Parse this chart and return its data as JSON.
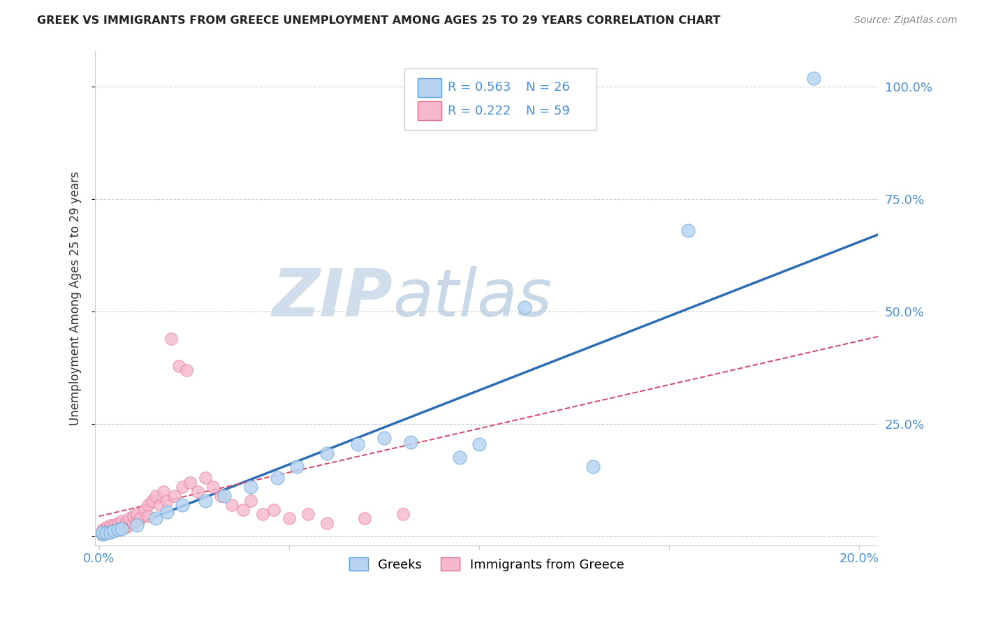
{
  "title": "GREEK VS IMMIGRANTS FROM GREECE UNEMPLOYMENT AMONG AGES 25 TO 29 YEARS CORRELATION CHART",
  "source": "Source: ZipAtlas.com",
  "ylabel": "Unemployment Among Ages 25 to 29 years",
  "xlim": [
    -0.001,
    0.205
  ],
  "ylim": [
    -0.02,
    1.08
  ],
  "xtick_positions": [
    0.0,
    0.05,
    0.1,
    0.15,
    0.2
  ],
  "xticklabels": [
    "0.0%",
    "",
    "",
    "",
    "20.0%"
  ],
  "ytick_positions": [
    0.0,
    0.25,
    0.5,
    0.75,
    1.0
  ],
  "yticklabels": [
    "",
    "25.0%",
    "50.0%",
    "75.0%",
    "100.0%"
  ],
  "blue_R": "R = 0.563",
  "blue_N": "N = 26",
  "pink_R": "R = 0.222",
  "pink_N": "N = 59",
  "blue_fill": "#b8d4f0",
  "pink_fill": "#f5b8cc",
  "blue_edge": "#5a9fd4",
  "pink_edge": "#e07090",
  "blue_line": "#2e6db4",
  "pink_line": "#d45070",
  "tick_color": "#4a90d9",
  "label_1": "Greeks",
  "label_2": "Immigrants from Greece",
  "watermark_zip": "ZIP",
  "watermark_atlas": "atlas",
  "blue_x": [
    0.001,
    0.001,
    0.002,
    0.003,
    0.004,
    0.005,
    0.006,
    0.01,
    0.015,
    0.018,
    0.022,
    0.028,
    0.033,
    0.04,
    0.047,
    0.052,
    0.06,
    0.068,
    0.075,
    0.082,
    0.095,
    0.1,
    0.112,
    0.13,
    0.155,
    0.188
  ],
  "blue_y": [
    0.005,
    0.01,
    0.008,
    0.01,
    0.012,
    0.015,
    0.018,
    0.025,
    0.04,
    0.055,
    0.07,
    0.08,
    0.09,
    0.11,
    0.13,
    0.155,
    0.185,
    0.205,
    0.22,
    0.21,
    0.175,
    0.205,
    0.51,
    0.155,
    0.68,
    1.02
  ],
  "pink_x": [
    0.001,
    0.001,
    0.001,
    0.001,
    0.001,
    0.002,
    0.002,
    0.002,
    0.002,
    0.003,
    0.003,
    0.003,
    0.003,
    0.004,
    0.004,
    0.004,
    0.005,
    0.005,
    0.005,
    0.006,
    0.006,
    0.006,
    0.007,
    0.007,
    0.008,
    0.008,
    0.009,
    0.009,
    0.01,
    0.01,
    0.011,
    0.012,
    0.013,
    0.013,
    0.014,
    0.015,
    0.016,
    0.017,
    0.018,
    0.019,
    0.02,
    0.021,
    0.022,
    0.023,
    0.024,
    0.026,
    0.028,
    0.03,
    0.032,
    0.035,
    0.038,
    0.04,
    0.043,
    0.046,
    0.05,
    0.055,
    0.06,
    0.07,
    0.08
  ],
  "pink_y": [
    0.005,
    0.008,
    0.01,
    0.012,
    0.015,
    0.008,
    0.01,
    0.015,
    0.02,
    0.01,
    0.015,
    0.02,
    0.025,
    0.012,
    0.018,
    0.025,
    0.015,
    0.02,
    0.03,
    0.018,
    0.025,
    0.035,
    0.02,
    0.03,
    0.025,
    0.04,
    0.03,
    0.045,
    0.035,
    0.05,
    0.04,
    0.06,
    0.07,
    0.045,
    0.08,
    0.09,
    0.07,
    0.1,
    0.08,
    0.44,
    0.09,
    0.38,
    0.11,
    0.37,
    0.12,
    0.1,
    0.13,
    0.11,
    0.09,
    0.07,
    0.06,
    0.08,
    0.05,
    0.06,
    0.04,
    0.05,
    0.03,
    0.04,
    0.05
  ]
}
